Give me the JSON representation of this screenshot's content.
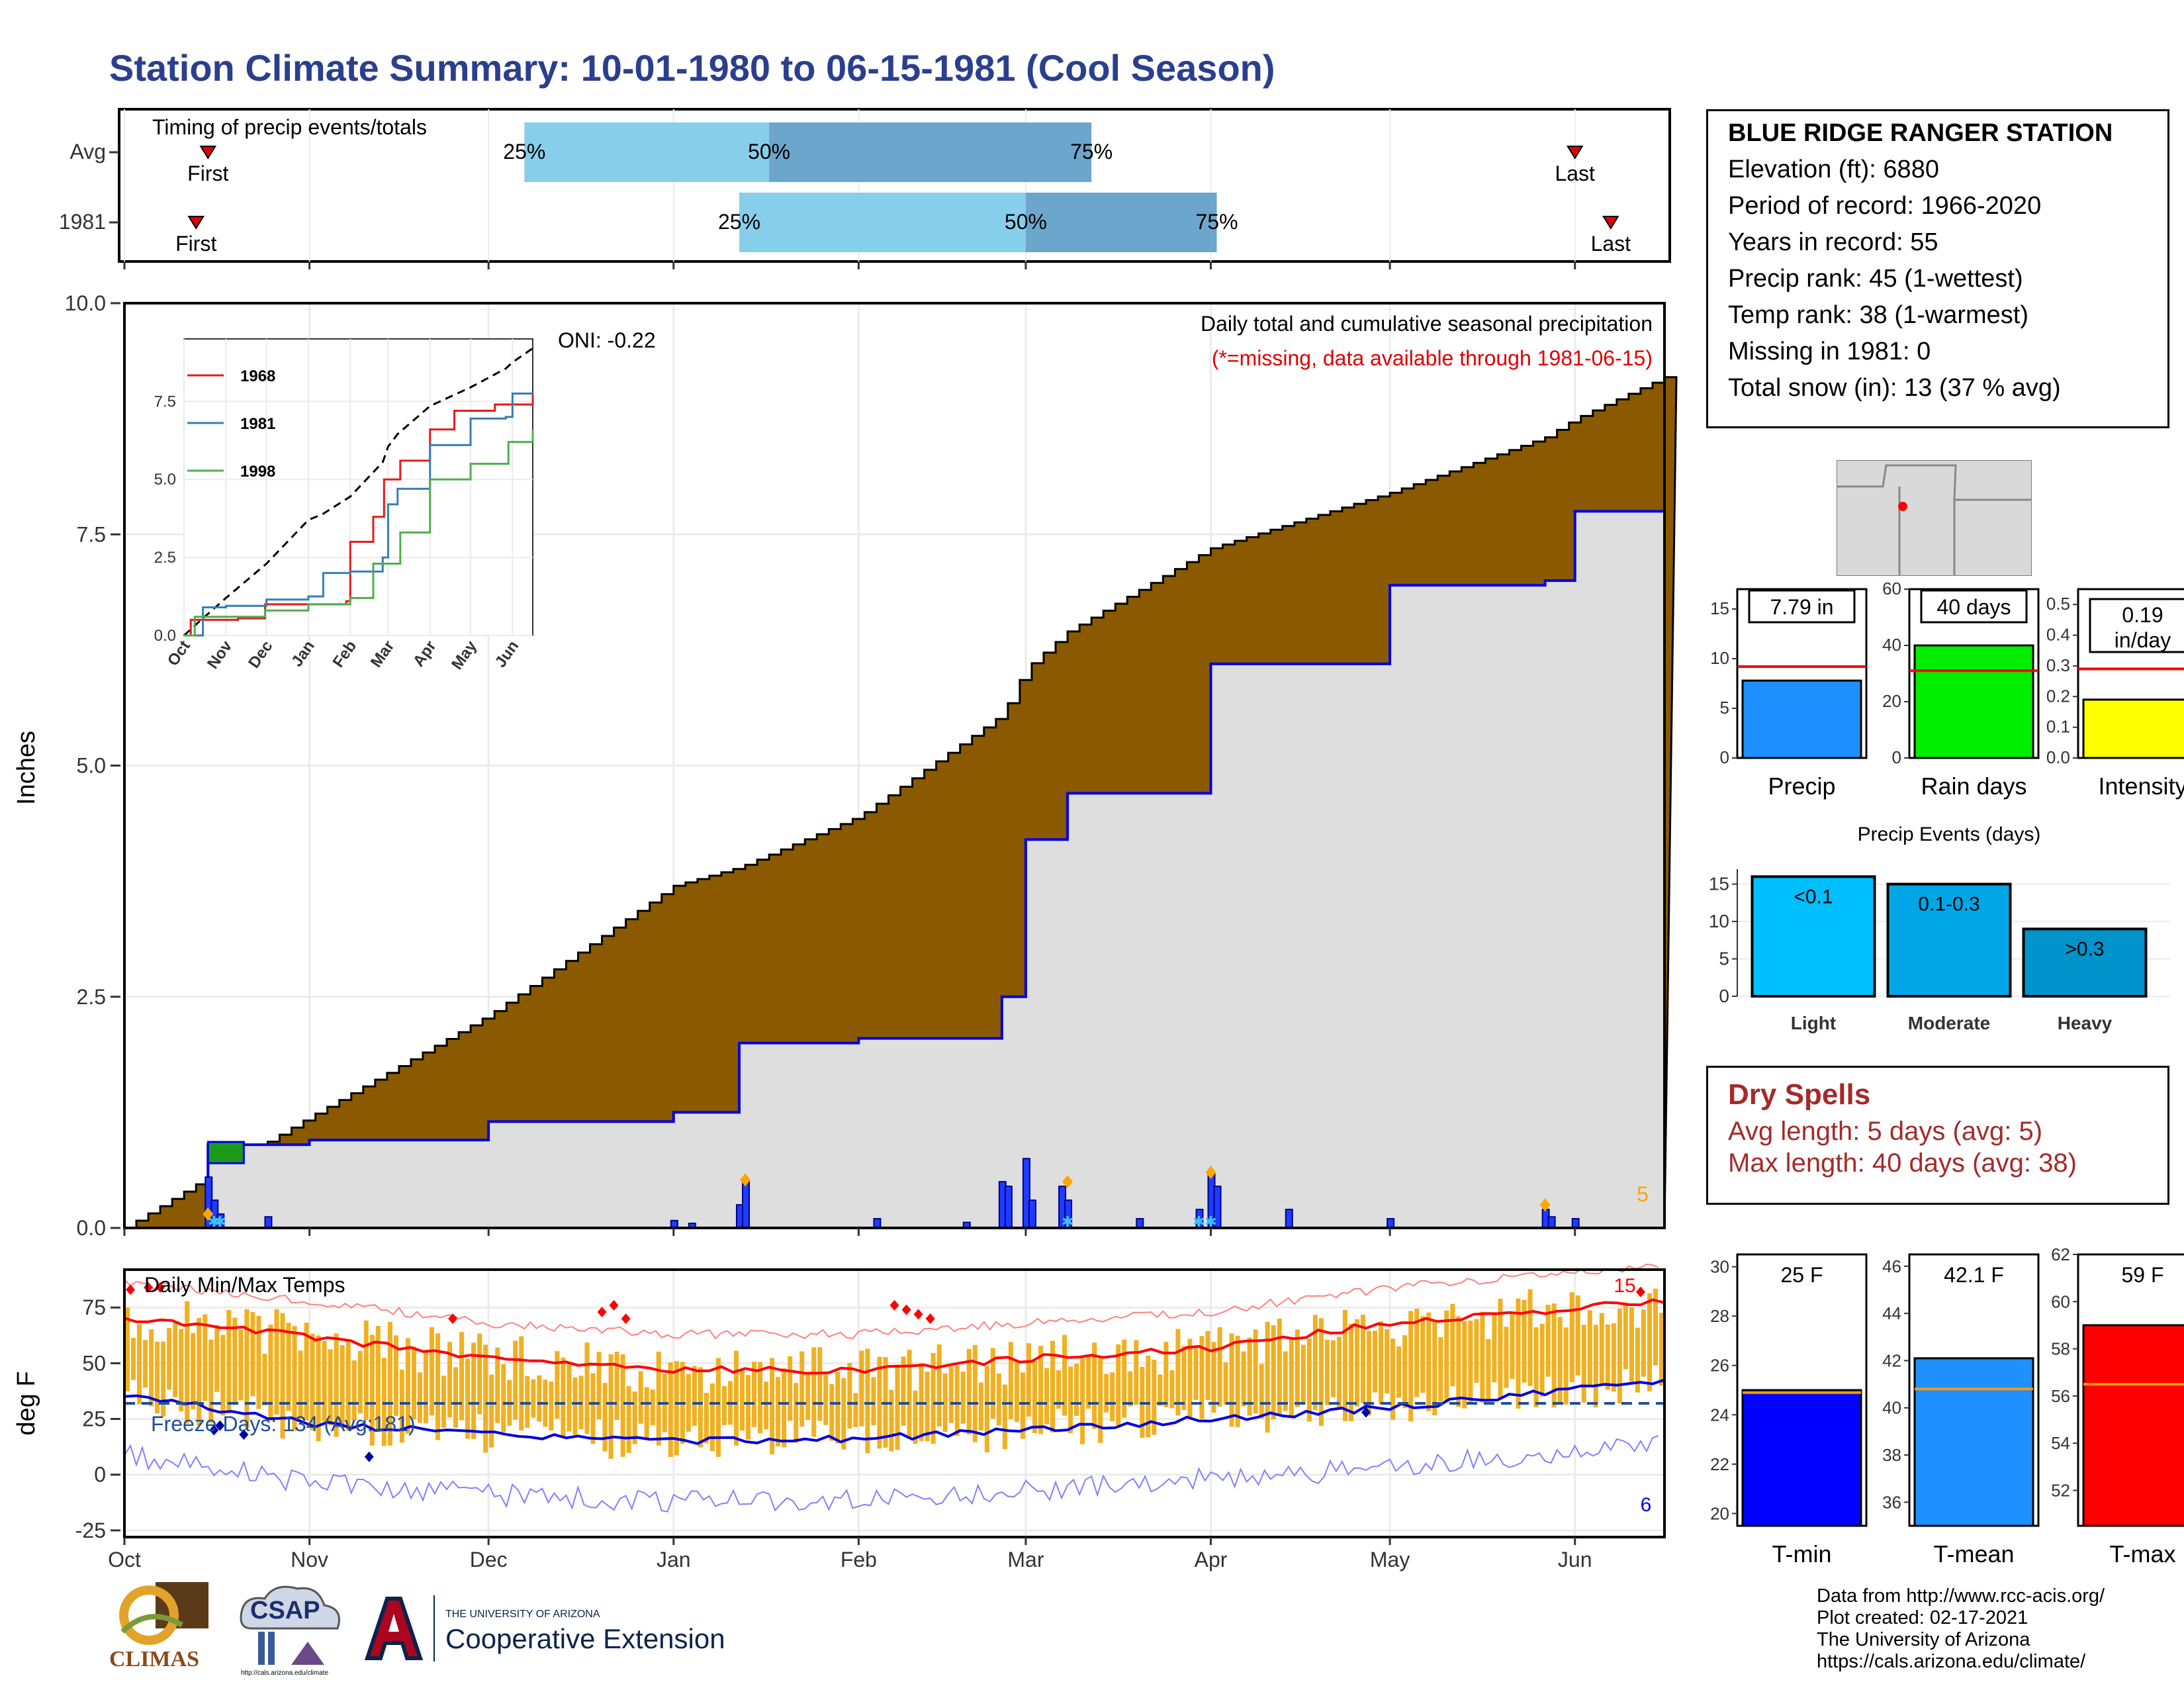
{
  "title": "Station Climate Summary: 10-01-1980 to 06-15-1981 (Cool Season)",
  "months": [
    "Oct",
    "Nov",
    "Dec",
    "Jan",
    "Feb",
    "Mar",
    "Apr",
    "May",
    "Jun"
  ],
  "timing": {
    "label": "Timing of precip events/totals",
    "rows": [
      {
        "name": "Avg",
        "first_day": 14,
        "last_day": 243,
        "p25_day": 67,
        "p50_day": 108,
        "p75_day": 162,
        "first_label": "First",
        "last_label": "Last"
      },
      {
        "name": "1981",
        "first_day": 12,
        "last_day": 249,
        "p25_day": 103,
        "p50_day": 151,
        "p75_day": 183,
        "first_label": "First",
        "last_label": "Last"
      }
    ],
    "pct_labels": [
      "25%",
      "50%",
      "75%"
    ]
  },
  "precip": {
    "ylabel": "Inches",
    "yticks": [
      "0.0",
      "2.5",
      "5.0",
      "7.5",
      "10.0"
    ],
    "note": "Daily total and cumulative seasonal precipitation",
    "missing_note": "(*=missing, data available through 1981-06-15)",
    "oni": "ONI: -0.22",
    "corner_value": "5"
  },
  "inset": {
    "yticks": [
      "0.0",
      "2.5",
      "5.0",
      "7.5"
    ],
    "xticks": [
      "Oct",
      "Nov",
      "Dec",
      "Jan",
      "Feb",
      "Mar",
      "Apr",
      "May",
      "Jun"
    ],
    "legend": [
      {
        "name": "1968",
        "color": "#e41a1c"
      },
      {
        "name": "1981",
        "color": "#377eb8"
      },
      {
        "name": "1998",
        "color": "#4daf4a"
      }
    ]
  },
  "temps": {
    "label": "Daily Min/Max Temps",
    "ylabel": "deg F",
    "yticks": [
      "-25",
      "0",
      "25",
      "50",
      "75"
    ],
    "freeze": "Freeze Days: 134 (Avg:181)",
    "record_high_count": "15",
    "record_low_count": "6"
  },
  "station": {
    "name": "BLUE RIDGE RANGER STATION",
    "lines": [
      "Elevation (ft): 6880",
      "Period of record: 1966-2020",
      "Years in record: 55",
      "Precip rank: 45 (1-wettest)",
      "Temp rank: 38 (1-warmest)",
      "Missing in 1981: 0",
      "Total snow (in): 13 (37 % avg)"
    ]
  },
  "summary_bars": [
    {
      "label": "Precip",
      "value": 7.79,
      "value_label": "7.79 in",
      "avg": 9.2,
      "ymax": 17,
      "yticks": [
        "0",
        "5",
        "10",
        "15"
      ],
      "color": "#1e90ff"
    },
    {
      "label": "Rain days",
      "value": 40,
      "value_label": "40 days",
      "avg": 31,
      "ymax": 60,
      "yticks": [
        "0",
        "20",
        "40",
        "60"
      ],
      "color": "#00ee00"
    },
    {
      "label": "Intensity",
      "value": 0.19,
      "value_label": "0.19 in/day",
      "avg": 0.29,
      "ymax": 0.55,
      "yticks": [
        "0.0",
        "0.1",
        "0.2",
        "0.3",
        "0.4",
        "0.5"
      ],
      "color": "#ffff00"
    }
  ],
  "events": {
    "title": "Precip Events (days)",
    "yticks": [
      "0",
      "5",
      "10",
      "15"
    ],
    "bars": [
      {
        "label": "Light",
        "range": "<0.1",
        "value": 16,
        "color": "#00bfff"
      },
      {
        "label": "Moderate",
        "range": "0.1-0.3",
        "value": 15,
        "color": "#00a6e6"
      },
      {
        "label": "Heavy",
        "range": ">0.3",
        "value": 9,
        "color": "#0093cc"
      }
    ]
  },
  "dry_spells": {
    "title": "Dry Spells",
    "avg": "Avg length: 5 days (avg: 5)",
    "max": "Max length: 40 days (avg: 38)"
  },
  "temp_bars": [
    {
      "label": "T-min",
      "value": 25,
      "value_label": "25 F",
      "avg": 24.9,
      "ymin": 19.5,
      "ymax": 30.5,
      "yticks": [
        "20",
        "22",
        "24",
        "26",
        "28",
        "30"
      ],
      "color": "#0000ff"
    },
    {
      "label": "T-mean",
      "value": 42.1,
      "value_label": "42.1 F",
      "avg": 40.8,
      "ymin": 35,
      "ymax": 46.5,
      "yticks": [
        "36",
        "38",
        "40",
        "42",
        "44",
        "46"
      ],
      "color": "#1e90ff"
    },
    {
      "label": "T-max",
      "value": 59,
      "value_label": "59 F",
      "avg": 56.5,
      "ymin": 50.5,
      "ymax": 62,
      "yticks": [
        "52",
        "54",
        "56",
        "58",
        "60",
        "62"
      ],
      "color": "#ff0000"
    }
  ],
  "credits": [
    "Data from http://www.rcc-acis.org/",
    "Plot created: 02-17-2021",
    "The University of Arizona",
    "https://cals.arizona.edu/climate/"
  ],
  "logos": {
    "climas": "CLIMAS",
    "csap": "CSAP",
    "ua_small": "THE UNIVERSITY OF ARIZONA",
    "ua_big": "Cooperative Extension"
  },
  "chart_data": [
    {
      "type": "area",
      "title": "Daily total and cumulative seasonal precipitation",
      "ylabel": "Inches",
      "ylim": [
        0,
        10
      ],
      "x": [
        "Oct 1",
        "Oct 15",
        "Nov 1",
        "Dec 1",
        "Jan 1",
        "Jan 12",
        "Feb 1",
        "Feb 25",
        "Mar 1",
        "Mar 8",
        "Apr 1",
        "May 1",
        "May 27",
        "Jun 1",
        "Jun 15"
      ],
      "series": [
        {
          "name": "Avg",
          "values": [
            0,
            0.55,
            1.2,
            2.3,
            3.7,
            3.9,
            4.45,
            5.55,
            6.05,
            6.45,
            7.35,
            7.95,
            8.55,
            8.75,
            9.2
          ]
        },
        {
          "name": "1981",
          "values": [
            0,
            0.9,
            0.95,
            1.15,
            1.25,
            2.0,
            2.05,
            2.5,
            4.2,
            4.7,
            6.1,
            6.95,
            7.0,
            7.75,
            7.79
          ]
        }
      ]
    },
    {
      "type": "line",
      "title": "Daily Min/Max Temps",
      "ylabel": "deg F",
      "ylim": [
        -25,
        90
      ],
      "x": [
        "Oct",
        "Nov",
        "Dec",
        "Jan",
        "Feb",
        "Mar",
        "Apr",
        "May",
        "Jun"
      ],
      "series": [
        {
          "name": "Avg max",
          "values": [
            70,
            62,
            52,
            47,
            47,
            52,
            57,
            68,
            78
          ]
        },
        {
          "name": "Avg min",
          "values": [
            36,
            23,
            18,
            15,
            16,
            20,
            25,
            30,
            42
          ]
        }
      ]
    },
    {
      "type": "bar",
      "categories": [
        "Precip",
        "Rain days",
        "Intensity"
      ],
      "series": [
        {
          "name": "1981",
          "values": [
            7.79,
            40,
            0.19
          ]
        },
        {
          "name": "Avg",
          "values": [
            9.2,
            31,
            0.29
          ]
        }
      ]
    },
    {
      "type": "bar",
      "title": "Precip Events (days)",
      "categories": [
        "Light",
        "Moderate",
        "Heavy"
      ],
      "values": [
        16,
        15,
        9
      ]
    },
    {
      "type": "bar",
      "categories": [
        "T-min",
        "T-mean",
        "T-max"
      ],
      "series": [
        {
          "name": "1981",
          "values": [
            25,
            42.1,
            59
          ]
        },
        {
          "name": "Avg",
          "values": [
            24.9,
            40.8,
            56.5
          ]
        }
      ]
    }
  ]
}
